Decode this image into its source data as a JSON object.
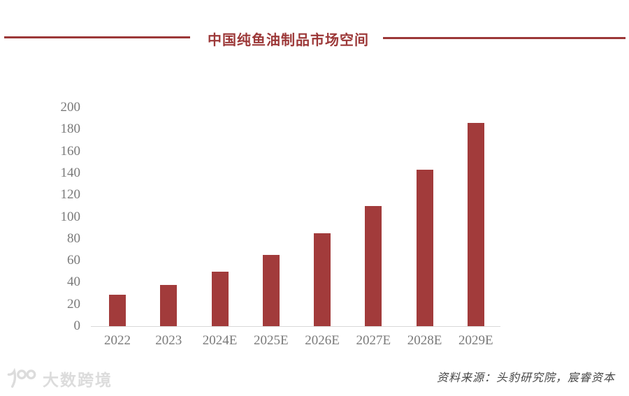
{
  "header": {
    "title": "中国纯鱼油制品市场空间"
  },
  "chart_data": {
    "type": "bar",
    "title": "中国纯鱼油制品市场空间",
    "categories": [
      "2022",
      "2023",
      "2024E",
      "2025E",
      "2026E",
      "2027E",
      "2028E",
      "2029E"
    ],
    "values": [
      29,
      38,
      50,
      65,
      85,
      110,
      143,
      186
    ],
    "xlabel": "",
    "ylabel": "",
    "ylim": [
      0,
      200
    ],
    "ytick_step": 20,
    "grid": false,
    "legend": "none",
    "bar_color": "#a23b3b"
  },
  "footer": {
    "source_label": "资料来源：头豹研究院，宸睿资本",
    "watermark_text": "大数跨境"
  },
  "colors": {
    "accent_red": "#9c3838",
    "bar_red": "#a23b3b",
    "axis_text_gray": "#7a7a7a",
    "baseline_gray": "#d9d9d9",
    "watermark_gray": "#dcdcdc"
  }
}
